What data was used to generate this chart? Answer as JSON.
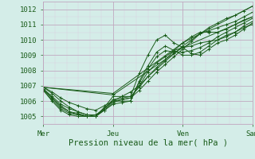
{
  "title": "",
  "xlabel": "Pression niveau de la mer( hPa )",
  "bg_color": "#d4ede8",
  "grid_color_major": "#c0a8c0",
  "grid_color_minor": "#dccce0",
  "line_color": "#1a5c1a",
  "xlim": [
    0,
    72
  ],
  "ylim": [
    1004.5,
    1012.5
  ],
  "yticks": [
    1005,
    1006,
    1007,
    1008,
    1009,
    1010,
    1011,
    1012
  ],
  "xtick_positions": [
    0,
    24,
    48,
    72
  ],
  "xtick_labels": [
    "Mer",
    "Jeu",
    "Ven",
    "Sam"
  ],
  "xlabel_fontsize": 7.5,
  "tick_fontsize": 6.5,
  "lines": [
    [
      0,
      1006.9,
      3,
      1006.6,
      6,
      1006.2,
      9,
      1005.9,
      12,
      1005.7,
      15,
      1005.5,
      18,
      1005.4,
      21,
      1005.7,
      24,
      1006.0,
      27,
      1006.3,
      30,
      1006.6,
      33,
      1007.0,
      36,
      1007.6,
      39,
      1008.1,
      42,
      1008.6,
      45,
      1009.1,
      48,
      1009.6,
      51,
      1010.0,
      54,
      1010.4,
      57,
      1010.8,
      60,
      1011.1,
      63,
      1011.4,
      66,
      1011.6,
      69,
      1011.9,
      72,
      1012.2
    ],
    [
      0,
      1006.9,
      3,
      1006.5,
      6,
      1006.0,
      9,
      1005.6,
      12,
      1005.3,
      15,
      1005.1,
      18,
      1005.0,
      21,
      1005.4,
      24,
      1005.9,
      27,
      1006.1,
      30,
      1006.2,
      33,
      1006.7,
      36,
      1007.3,
      39,
      1007.9,
      42,
      1008.4,
      45,
      1008.9,
      48,
      1009.4,
      51,
      1009.9,
      54,
      1010.4,
      57,
      1010.6,
      60,
      1010.8,
      63,
      1011.0,
      66,
      1011.2,
      69,
      1011.5,
      72,
      1011.8
    ],
    [
      0,
      1006.8,
      3,
      1006.3,
      6,
      1005.8,
      9,
      1005.5,
      12,
      1005.3,
      15,
      1005.1,
      18,
      1005.1,
      21,
      1005.5,
      24,
      1006.1,
      27,
      1006.2,
      30,
      1006.3,
      33,
      1006.9,
      36,
      1007.6,
      39,
      1008.2,
      42,
      1008.7,
      45,
      1009.3,
      48,
      1009.8,
      51,
      1010.2,
      54,
      1010.5,
      57,
      1010.5,
      60,
      1010.5,
      63,
      1010.7,
      66,
      1011.0,
      69,
      1011.3,
      72,
      1011.5
    ],
    [
      0,
      1006.8,
      3,
      1006.2,
      6,
      1005.6,
      9,
      1005.3,
      12,
      1005.1,
      15,
      1005.0,
      18,
      1005.0,
      21,
      1005.5,
      24,
      1006.0,
      27,
      1006.1,
      30,
      1006.2,
      33,
      1007.0,
      36,
      1007.9,
      39,
      1008.5,
      42,
      1008.9,
      45,
      1009.3,
      48,
      1009.5,
      51,
      1009.6,
      54,
      1009.8,
      57,
      1009.9,
      60,
      1010.0,
      63,
      1010.3,
      66,
      1010.5,
      69,
      1010.9,
      72,
      1011.2
    ],
    [
      0,
      1006.7,
      3,
      1006.1,
      6,
      1005.5,
      9,
      1005.2,
      12,
      1005.1,
      15,
      1005.0,
      18,
      1005.0,
      21,
      1005.5,
      24,
      1006.0,
      27,
      1006.0,
      30,
      1006.0,
      33,
      1007.2,
      36,
      1008.1,
      39,
      1008.9,
      42,
      1009.3,
      45,
      1009.2,
      48,
      1009.2,
      51,
      1009.3,
      54,
      1009.5,
      57,
      1009.8,
      60,
      1010.2,
      63,
      1010.5,
      66,
      1010.8,
      69,
      1011.1,
      72,
      1011.4
    ],
    [
      0,
      1006.7,
      3,
      1006.0,
      6,
      1005.4,
      9,
      1005.1,
      12,
      1005.0,
      15,
      1005.0,
      18,
      1005.0,
      21,
      1005.4,
      24,
      1005.8,
      27,
      1005.9,
      30,
      1006.0,
      33,
      1007.3,
      36,
      1008.3,
      39,
      1009.2,
      42,
      1009.6,
      45,
      1009.3,
      48,
      1009.0,
      51,
      1009.0,
      54,
      1009.2,
      57,
      1009.6,
      60,
      1010.0,
      63,
      1010.2,
      66,
      1010.5,
      69,
      1010.8,
      72,
      1011.0
    ],
    [
      0,
      1006.8,
      3,
      1006.2,
      6,
      1005.7,
      9,
      1005.3,
      12,
      1005.2,
      15,
      1005.0,
      18,
      1005.0,
      21,
      1005.6,
      24,
      1006.3,
      27,
      1006.3,
      30,
      1006.3,
      33,
      1007.8,
      36,
      1009.0,
      39,
      1010.0,
      42,
      1010.3,
      45,
      1009.8,
      48,
      1009.5,
      51,
      1009.1,
      54,
      1009.0,
      57,
      1009.4,
      60,
      1009.8,
      63,
      1010.0,
      66,
      1010.3,
      69,
      1010.7,
      72,
      1011.1
    ],
    [
      0,
      1006.9,
      24,
      1006.5,
      48,
      1009.8,
      72,
      1012.2
    ],
    [
      0,
      1006.9,
      24,
      1006.4,
      48,
      1009.5,
      72,
      1011.5
    ]
  ]
}
